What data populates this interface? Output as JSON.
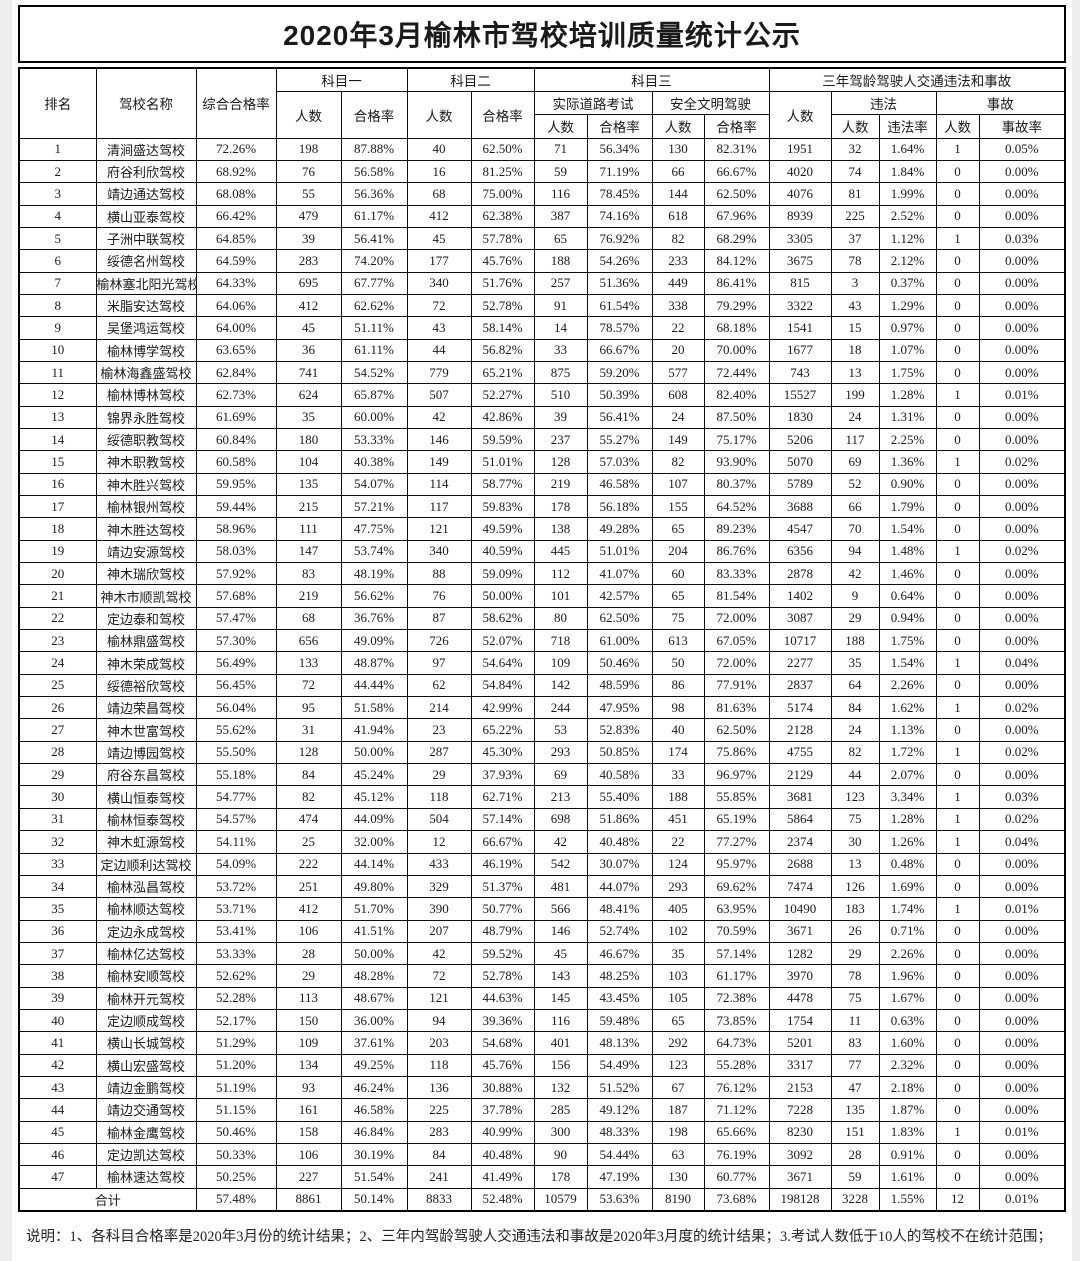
{
  "title": "2020年3月榆林市驾校培训质量统计公示",
  "columns": {
    "rank": "排名",
    "school_name": "驾校名称",
    "overall_rate": "综合合格率",
    "subject1": "科目一",
    "subject2": "科目二",
    "subject3": "科目三",
    "three_year_group": "三年驾龄驾驶人交通违法和事故",
    "count": "人数",
    "pass_rate": "合格率",
    "road_test": "实际道路考试",
    "safe_driving": "安全文明驾驶",
    "violation": "违法",
    "violation_rate": "违法率",
    "accident": "事故",
    "accident_rate": "事故率"
  },
  "rows": [
    [
      "1",
      "清涧盛达驾校",
      "72.26%",
      "198",
      "87.88%",
      "40",
      "62.50%",
      "71",
      "56.34%",
      "130",
      "82.31%",
      "1951",
      "32",
      "1.64%",
      "1",
      "0.05%"
    ],
    [
      "2",
      "府谷利欣驾校",
      "68.92%",
      "76",
      "56.58%",
      "16",
      "81.25%",
      "59",
      "71.19%",
      "66",
      "66.67%",
      "4020",
      "74",
      "1.84%",
      "0",
      "0.00%"
    ],
    [
      "3",
      "靖边通达驾校",
      "68.08%",
      "55",
      "56.36%",
      "68",
      "75.00%",
      "116",
      "78.45%",
      "144",
      "62.50%",
      "4076",
      "81",
      "1.99%",
      "0",
      "0.00%"
    ],
    [
      "4",
      "横山亚泰驾校",
      "66.42%",
      "479",
      "61.17%",
      "412",
      "62.38%",
      "387",
      "74.16%",
      "618",
      "67.96%",
      "8939",
      "225",
      "2.52%",
      "0",
      "0.00%"
    ],
    [
      "5",
      "子洲中联驾校",
      "64.85%",
      "39",
      "56.41%",
      "45",
      "57.78%",
      "65",
      "76.92%",
      "82",
      "68.29%",
      "3305",
      "37",
      "1.12%",
      "1",
      "0.03%"
    ],
    [
      "6",
      "绥德名州驾校",
      "64.59%",
      "283",
      "74.20%",
      "177",
      "45.76%",
      "188",
      "54.26%",
      "233",
      "84.12%",
      "3675",
      "78",
      "2.12%",
      "0",
      "0.00%"
    ],
    [
      "7",
      "榆林塞北阳光驾校",
      "64.33%",
      "695",
      "67.77%",
      "340",
      "51.76%",
      "257",
      "51.36%",
      "449",
      "86.41%",
      "815",
      "3",
      "0.37%",
      "0",
      "0.00%"
    ],
    [
      "8",
      "米脂安达驾校",
      "64.06%",
      "412",
      "62.62%",
      "72",
      "52.78%",
      "91",
      "61.54%",
      "338",
      "79.29%",
      "3322",
      "43",
      "1.29%",
      "0",
      "0.00%"
    ],
    [
      "9",
      "吴堡鸿运驾校",
      "64.00%",
      "45",
      "51.11%",
      "43",
      "58.14%",
      "14",
      "78.57%",
      "22",
      "68.18%",
      "1541",
      "15",
      "0.97%",
      "0",
      "0.00%"
    ],
    [
      "10",
      "榆林博学驾校",
      "63.65%",
      "36",
      "61.11%",
      "44",
      "56.82%",
      "33",
      "66.67%",
      "20",
      "70.00%",
      "1677",
      "18",
      "1.07%",
      "0",
      "0.00%"
    ],
    [
      "11",
      "榆林海鑫盛驾校",
      "62.84%",
      "741",
      "54.52%",
      "779",
      "65.21%",
      "875",
      "59.20%",
      "577",
      "72.44%",
      "743",
      "13",
      "1.75%",
      "0",
      "0.00%"
    ],
    [
      "12",
      "榆林博林驾校",
      "62.73%",
      "624",
      "65.87%",
      "507",
      "52.27%",
      "510",
      "50.39%",
      "608",
      "82.40%",
      "15527",
      "199",
      "1.28%",
      "1",
      "0.01%"
    ],
    [
      "13",
      "锦界永胜驾校",
      "61.69%",
      "35",
      "60.00%",
      "42",
      "42.86%",
      "39",
      "56.41%",
      "24",
      "87.50%",
      "1830",
      "24",
      "1.31%",
      "0",
      "0.00%"
    ],
    [
      "14",
      "绥德职教驾校",
      "60.84%",
      "180",
      "53.33%",
      "146",
      "59.59%",
      "237",
      "55.27%",
      "149",
      "75.17%",
      "5206",
      "117",
      "2.25%",
      "0",
      "0.00%"
    ],
    [
      "15",
      "神木职教驾校",
      "60.58%",
      "104",
      "40.38%",
      "149",
      "51.01%",
      "128",
      "57.03%",
      "82",
      "93.90%",
      "5070",
      "69",
      "1.36%",
      "1",
      "0.02%"
    ],
    [
      "16",
      "神木胜兴驾校",
      "59.95%",
      "135",
      "54.07%",
      "114",
      "58.77%",
      "219",
      "46.58%",
      "107",
      "80.37%",
      "5789",
      "52",
      "0.90%",
      "0",
      "0.00%"
    ],
    [
      "17",
      "榆林银州驾校",
      "59.44%",
      "215",
      "57.21%",
      "117",
      "59.83%",
      "178",
      "56.18%",
      "155",
      "64.52%",
      "3688",
      "66",
      "1.79%",
      "0",
      "0.00%"
    ],
    [
      "18",
      "神木胜达驾校",
      "58.96%",
      "111",
      "47.75%",
      "121",
      "49.59%",
      "138",
      "49.28%",
      "65",
      "89.23%",
      "4547",
      "70",
      "1.54%",
      "0",
      "0.00%"
    ],
    [
      "19",
      "靖边安源驾校",
      "58.03%",
      "147",
      "53.74%",
      "340",
      "40.59%",
      "445",
      "51.01%",
      "204",
      "86.76%",
      "6356",
      "94",
      "1.48%",
      "1",
      "0.02%"
    ],
    [
      "20",
      "神木瑞欣驾校",
      "57.92%",
      "83",
      "48.19%",
      "88",
      "59.09%",
      "112",
      "41.07%",
      "60",
      "83.33%",
      "2878",
      "42",
      "1.46%",
      "0",
      "0.00%"
    ],
    [
      "21",
      "神木市顺凯驾校",
      "57.68%",
      "219",
      "56.62%",
      "76",
      "50.00%",
      "101",
      "42.57%",
      "65",
      "81.54%",
      "1402",
      "9",
      "0.64%",
      "0",
      "0.00%"
    ],
    [
      "22",
      "定边泰和驾校",
      "57.47%",
      "68",
      "36.76%",
      "87",
      "58.62%",
      "80",
      "62.50%",
      "75",
      "72.00%",
      "3087",
      "29",
      "0.94%",
      "0",
      "0.00%"
    ],
    [
      "23",
      "榆林鼎盛驾校",
      "57.30%",
      "656",
      "49.09%",
      "726",
      "52.07%",
      "718",
      "61.00%",
      "613",
      "67.05%",
      "10717",
      "188",
      "1.75%",
      "0",
      "0.00%"
    ],
    [
      "24",
      "神木荣成驾校",
      "56.49%",
      "133",
      "48.87%",
      "97",
      "54.64%",
      "109",
      "50.46%",
      "50",
      "72.00%",
      "2277",
      "35",
      "1.54%",
      "1",
      "0.04%"
    ],
    [
      "25",
      "绥德裕欣驾校",
      "56.45%",
      "72",
      "44.44%",
      "62",
      "54.84%",
      "142",
      "48.59%",
      "86",
      "77.91%",
      "2837",
      "64",
      "2.26%",
      "0",
      "0.00%"
    ],
    [
      "26",
      "靖边荣昌驾校",
      "56.04%",
      "95",
      "51.58%",
      "214",
      "42.99%",
      "244",
      "47.95%",
      "98",
      "81.63%",
      "5174",
      "84",
      "1.62%",
      "1",
      "0.02%"
    ],
    [
      "27",
      "神木世富驾校",
      "55.62%",
      "31",
      "41.94%",
      "23",
      "65.22%",
      "53",
      "52.83%",
      "40",
      "62.50%",
      "2128",
      "24",
      "1.13%",
      "0",
      "0.00%"
    ],
    [
      "28",
      "靖边博园驾校",
      "55.50%",
      "128",
      "50.00%",
      "287",
      "45.30%",
      "293",
      "50.85%",
      "174",
      "75.86%",
      "4755",
      "82",
      "1.72%",
      "1",
      "0.02%"
    ],
    [
      "29",
      "府谷东昌驾校",
      "55.18%",
      "84",
      "45.24%",
      "29",
      "37.93%",
      "69",
      "40.58%",
      "33",
      "96.97%",
      "2129",
      "44",
      "2.07%",
      "0",
      "0.00%"
    ],
    [
      "30",
      "横山恒泰驾校",
      "54.77%",
      "82",
      "45.12%",
      "118",
      "62.71%",
      "213",
      "55.40%",
      "188",
      "55.85%",
      "3681",
      "123",
      "3.34%",
      "1",
      "0.03%"
    ],
    [
      "31",
      "榆林恒泰驾校",
      "54.57%",
      "474",
      "44.09%",
      "504",
      "57.14%",
      "698",
      "51.86%",
      "451",
      "65.19%",
      "5864",
      "75",
      "1.28%",
      "1",
      "0.02%"
    ],
    [
      "32",
      "神木虹源驾校",
      "54.11%",
      "25",
      "32.00%",
      "12",
      "66.67%",
      "42",
      "40.48%",
      "22",
      "77.27%",
      "2374",
      "30",
      "1.26%",
      "1",
      "0.04%"
    ],
    [
      "33",
      "定边顺利达驾校",
      "54.09%",
      "222",
      "44.14%",
      "433",
      "46.19%",
      "542",
      "30.07%",
      "124",
      "95.97%",
      "2688",
      "13",
      "0.48%",
      "0",
      "0.00%"
    ],
    [
      "34",
      "榆林泓昌驾校",
      "53.72%",
      "251",
      "49.80%",
      "329",
      "51.37%",
      "481",
      "44.07%",
      "293",
      "69.62%",
      "7474",
      "126",
      "1.69%",
      "0",
      "0.00%"
    ],
    [
      "35",
      "榆林顺达驾校",
      "53.71%",
      "412",
      "51.70%",
      "390",
      "50.77%",
      "566",
      "48.41%",
      "405",
      "63.95%",
      "10490",
      "183",
      "1.74%",
      "1",
      "0.01%"
    ],
    [
      "36",
      "定边永成驾校",
      "53.41%",
      "106",
      "41.51%",
      "207",
      "48.79%",
      "146",
      "52.74%",
      "102",
      "70.59%",
      "3671",
      "26",
      "0.71%",
      "0",
      "0.00%"
    ],
    [
      "37",
      "榆林亿达驾校",
      "53.33%",
      "28",
      "50.00%",
      "42",
      "59.52%",
      "45",
      "46.67%",
      "35",
      "57.14%",
      "1282",
      "29",
      "2.26%",
      "0",
      "0.00%"
    ],
    [
      "38",
      "榆林安顺驾校",
      "52.62%",
      "29",
      "48.28%",
      "72",
      "52.78%",
      "143",
      "48.25%",
      "103",
      "61.17%",
      "3970",
      "78",
      "1.96%",
      "0",
      "0.00%"
    ],
    [
      "39",
      "榆林开元驾校",
      "52.28%",
      "113",
      "48.67%",
      "121",
      "44.63%",
      "145",
      "43.45%",
      "105",
      "72.38%",
      "4478",
      "75",
      "1.67%",
      "0",
      "0.00%"
    ],
    [
      "40",
      "定边顺成驾校",
      "52.17%",
      "150",
      "36.00%",
      "94",
      "39.36%",
      "116",
      "59.48%",
      "65",
      "73.85%",
      "1754",
      "11",
      "0.63%",
      "0",
      "0.00%"
    ],
    [
      "41",
      "横山长城驾校",
      "51.29%",
      "109",
      "37.61%",
      "203",
      "54.68%",
      "401",
      "48.13%",
      "292",
      "64.73%",
      "5201",
      "83",
      "1.60%",
      "0",
      "0.00%"
    ],
    [
      "42",
      "横山宏盛驾校",
      "51.20%",
      "134",
      "49.25%",
      "118",
      "45.76%",
      "156",
      "54.49%",
      "123",
      "55.28%",
      "3317",
      "77",
      "2.32%",
      "0",
      "0.00%"
    ],
    [
      "43",
      "靖边金鹏驾校",
      "51.19%",
      "93",
      "46.24%",
      "136",
      "30.88%",
      "132",
      "51.52%",
      "67",
      "76.12%",
      "2153",
      "47",
      "2.18%",
      "0",
      "0.00%"
    ],
    [
      "44",
      "靖边交通驾校",
      "51.15%",
      "161",
      "46.58%",
      "225",
      "37.78%",
      "285",
      "49.12%",
      "187",
      "71.12%",
      "7228",
      "135",
      "1.87%",
      "0",
      "0.00%"
    ],
    [
      "45",
      "榆林金鹰驾校",
      "50.46%",
      "158",
      "46.84%",
      "283",
      "40.99%",
      "300",
      "48.33%",
      "198",
      "65.66%",
      "8230",
      "151",
      "1.83%",
      "1",
      "0.01%"
    ],
    [
      "46",
      "定边凯达驾校",
      "50.33%",
      "106",
      "30.19%",
      "84",
      "40.48%",
      "90",
      "54.44%",
      "63",
      "76.19%",
      "3092",
      "28",
      "0.91%",
      "0",
      "0.00%"
    ],
    [
      "47",
      "榆林速达驾校",
      "50.25%",
      "227",
      "51.54%",
      "241",
      "41.49%",
      "178",
      "47.19%",
      "130",
      "60.77%",
      "3671",
      "59",
      "1.61%",
      "0",
      "0.00%"
    ]
  ],
  "total_row": {
    "label": "合计",
    "values": [
      "57.48%",
      "8861",
      "50.14%",
      "8833",
      "52.48%",
      "10579",
      "53.63%",
      "8190",
      "73.68%",
      "198128",
      "3228",
      "1.55%",
      "12",
      "0.01%"
    ]
  },
  "note": "说明：1、各科目合格率是2020年3月份的统计结果；2、三年内驾龄驾驶人交通违法和事故是2020年3月度的统计结果；3.考试人数低于10人的驾校不在统计范围；"
}
